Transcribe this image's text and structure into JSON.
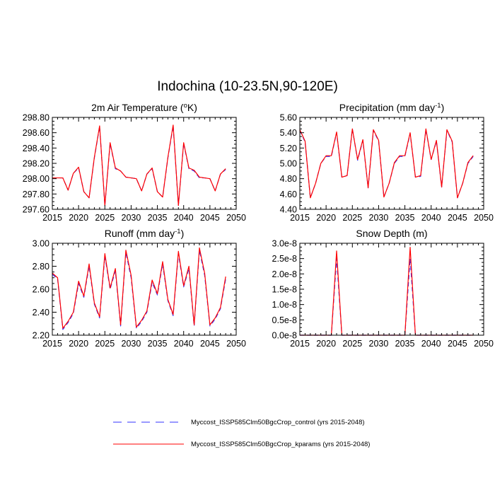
{
  "title": "Indochina (10-23.5N,90-120E)",
  "legend": {
    "control": {
      "label": "Myccost_ISSP585Clm50BgcCrop_control (yrs 2015-2048)",
      "color": "#3333ff",
      "style": "dashed"
    },
    "kparams": {
      "label": "Myccost_ISSP585Clm50BgcCrop_kparams (yrs 2015-2048)",
      "color": "#ff0000",
      "style": "solid"
    }
  },
  "chart_data": [
    {
      "type": "line",
      "title": "2m Air Temperature (°K)",
      "title_parts": {
        "pre": "2m Air Temperature (",
        "sup": "o",
        "post": "K)"
      },
      "xlim": [
        2015,
        2050
      ],
      "xticks": [
        2015,
        2020,
        2025,
        2030,
        2035,
        2040,
        2045,
        2050
      ],
      "xtick_labels": [
        "2015",
        "2020",
        "2025",
        "2030",
        "2035",
        "2040",
        "2045",
        "2050"
      ],
      "ylim": [
        297.6,
        298.8
      ],
      "yticks": [
        297.6,
        297.8,
        298.0,
        298.2,
        298.4,
        298.6,
        298.8
      ],
      "ytick_labels": [
        "297.60",
        "297.80",
        "298.00",
        "298.20",
        "298.40",
        "298.60",
        "298.80"
      ],
      "x": [
        2015,
        2016,
        2017,
        2018,
        2019,
        2020,
        2021,
        2022,
        2023,
        2024,
        2025,
        2026,
        2027,
        2028,
        2029,
        2030,
        2031,
        2032,
        2033,
        2034,
        2035,
        2036,
        2037,
        2038,
        2039,
        2040,
        2041,
        2042,
        2043,
        2044,
        2045,
        2046,
        2047,
        2048
      ],
      "series": [
        {
          "name": "control",
          "values": [
            298.01,
            298.01,
            298.01,
            297.85,
            298.07,
            298.14,
            297.83,
            297.75,
            298.27,
            298.68,
            297.65,
            298.46,
            298.13,
            298.1,
            298.02,
            298.01,
            298.0,
            297.84,
            298.06,
            298.13,
            297.83,
            297.76,
            298.27,
            298.69,
            297.65,
            298.46,
            298.13,
            298.1,
            298.01,
            298.01,
            298.0,
            297.84,
            298.06,
            298.12
          ]
        },
        {
          "name": "kparams",
          "values": [
            298.01,
            298.01,
            298.01,
            297.85,
            298.07,
            298.15,
            297.83,
            297.75,
            298.28,
            298.69,
            297.65,
            298.47,
            298.14,
            298.1,
            298.02,
            298.01,
            298.0,
            297.84,
            298.06,
            298.14,
            297.83,
            297.76,
            298.28,
            298.7,
            297.65,
            298.47,
            298.14,
            298.11,
            298.02,
            298.01,
            298.0,
            297.84,
            298.06,
            298.13
          ]
        }
      ]
    },
    {
      "type": "line",
      "title": "Precipitation (mm day-1)",
      "title_parts": {
        "pre": "Precipitation (mm day",
        "sup": "-1",
        "post": ")"
      },
      "xlim": [
        2015,
        2050
      ],
      "xticks": [
        2015,
        2020,
        2025,
        2030,
        2035,
        2040,
        2045,
        2050
      ],
      "xtick_labels": [
        "2015",
        "2020",
        "2025",
        "2030",
        "2035",
        "2040",
        "2045",
        "2050"
      ],
      "ylim": [
        4.4,
        5.6
      ],
      "yticks": [
        4.4,
        4.6,
        4.8,
        5.0,
        5.2,
        5.4,
        5.6
      ],
      "ytick_labels": [
        "4.40",
        "4.60",
        "4.80",
        "5.00",
        "5.20",
        "5.40",
        "5.60"
      ],
      "x": [
        2015,
        2016,
        2017,
        2018,
        2019,
        2020,
        2021,
        2022,
        2023,
        2024,
        2025,
        2026,
        2027,
        2028,
        2029,
        2030,
        2031,
        2032,
        2033,
        2034,
        2035,
        2036,
        2037,
        2038,
        2039,
        2040,
        2041,
        2042,
        2043,
        2044,
        2045,
        2046,
        2047,
        2048
      ],
      "series": [
        {
          "name": "control",
          "values": [
            5.43,
            5.28,
            4.55,
            4.74,
            5.0,
            5.09,
            5.09,
            5.4,
            4.82,
            4.84,
            5.45,
            5.04,
            5.3,
            4.68,
            5.43,
            5.29,
            4.56,
            4.74,
            5.0,
            5.09,
            5.09,
            5.39,
            4.82,
            4.83,
            5.44,
            5.05,
            5.29,
            4.69,
            5.43,
            5.28,
            4.55,
            4.74,
            5.0,
            5.09
          ]
        },
        {
          "name": "kparams",
          "values": [
            5.44,
            5.29,
            4.55,
            4.74,
            5.0,
            5.1,
            5.1,
            5.41,
            4.82,
            4.84,
            5.45,
            5.05,
            5.31,
            4.68,
            5.44,
            5.3,
            4.56,
            4.74,
            5.01,
            5.1,
            5.1,
            5.4,
            4.82,
            4.84,
            5.45,
            5.05,
            5.3,
            4.69,
            5.44,
            5.29,
            4.55,
            4.74,
            5.01,
            5.1
          ]
        }
      ]
    },
    {
      "type": "line",
      "title": "Runoff (mm day-1)",
      "title_parts": {
        "pre": "Runoff (mm day",
        "sup": "-1",
        "post": ")"
      },
      "xlim": [
        2015,
        2050
      ],
      "xticks": [
        2015,
        2020,
        2025,
        2030,
        2035,
        2040,
        2045,
        2050
      ],
      "xtick_labels": [
        "2015",
        "2020",
        "2025",
        "2030",
        "2035",
        "2040",
        "2045",
        "2050"
      ],
      "ylim": [
        2.2,
        3.0
      ],
      "yticks": [
        2.2,
        2.4,
        2.6,
        2.8,
        3.0
      ],
      "ytick_labels": [
        "2.20",
        "2.40",
        "2.60",
        "2.80",
        "3.00"
      ],
      "x": [
        2015,
        2016,
        2017,
        2018,
        2019,
        2020,
        2021,
        2022,
        2023,
        2024,
        2025,
        2026,
        2027,
        2028,
        2029,
        2030,
        2031,
        2032,
        2033,
        2034,
        2035,
        2036,
        2037,
        2038,
        2039,
        2040,
        2041,
        2042,
        2043,
        2044,
        2045,
        2046,
        2047,
        2048
      ],
      "series": [
        {
          "name": "control",
          "values": [
            2.73,
            2.69,
            2.25,
            2.31,
            2.39,
            2.65,
            2.53,
            2.8,
            2.47,
            2.35,
            2.89,
            2.6,
            2.76,
            2.28,
            2.92,
            2.7,
            2.26,
            2.32,
            2.4,
            2.66,
            2.55,
            2.82,
            2.5,
            2.37,
            2.91,
            2.62,
            2.78,
            2.28,
            2.94,
            2.72,
            2.28,
            2.34,
            2.43,
            2.69
          ]
        },
        {
          "name": "kparams",
          "values": [
            2.74,
            2.7,
            2.26,
            2.32,
            2.4,
            2.67,
            2.54,
            2.82,
            2.48,
            2.36,
            2.91,
            2.61,
            2.78,
            2.29,
            2.94,
            2.72,
            2.27,
            2.33,
            2.41,
            2.68,
            2.56,
            2.84,
            2.51,
            2.38,
            2.93,
            2.63,
            2.8,
            2.29,
            2.96,
            2.74,
            2.29,
            2.35,
            2.44,
            2.71
          ]
        }
      ]
    },
    {
      "type": "line",
      "title": "Snow Depth (m)",
      "title_parts": {
        "pre": "Snow Depth (m)",
        "sup": "",
        "post": ""
      },
      "xlim": [
        2015,
        2050
      ],
      "xticks": [
        2015,
        2020,
        2025,
        2030,
        2035,
        2040,
        2045,
        2050
      ],
      "xtick_labels": [
        "2015",
        "2020",
        "2025",
        "2030",
        "2035",
        "2040",
        "2045",
        "2050"
      ],
      "ylim": [
        0,
        3e-08
      ],
      "yticks": [
        0,
        5e-09,
        1e-08,
        1.5e-08,
        2e-08,
        2.5e-08,
        3e-08
      ],
      "ytick_labels": [
        "0.0e-8",
        "0.5e-8",
        "1.0e-8",
        "1.5e-8",
        "2.0e-8",
        "2.5e-8",
        "3.0e-8"
      ],
      "x": [
        2015,
        2016,
        2017,
        2018,
        2019,
        2020,
        2021,
        2022,
        2023,
        2024,
        2025,
        2026,
        2027,
        2028,
        2029,
        2030,
        2031,
        2032,
        2033,
        2034,
        2035,
        2036,
        2037,
        2038,
        2039,
        2040,
        2041,
        2042,
        2043,
        2044,
        2045,
        2046,
        2047,
        2048
      ],
      "series": [
        {
          "name": "control",
          "values": [
            0,
            0,
            0,
            0,
            0,
            0,
            0,
            2.5e-08,
            0,
            0,
            0,
            0,
            0,
            0,
            0,
            0,
            0,
            0,
            0,
            0,
            0,
            2.5e-08,
            0,
            0,
            0,
            0,
            0,
            0,
            0,
            0,
            0,
            0,
            0,
            0
          ]
        },
        {
          "name": "kparams",
          "values": [
            0,
            0,
            0,
            0,
            0,
            0,
            0,
            2.75e-08,
            0,
            0,
            0,
            0,
            0,
            0,
            0,
            0,
            0,
            0,
            0,
            0,
            0,
            2.87e-08,
            0,
            0,
            0,
            0,
            0,
            0,
            0,
            0,
            0,
            0,
            0,
            0
          ]
        }
      ]
    }
  ]
}
